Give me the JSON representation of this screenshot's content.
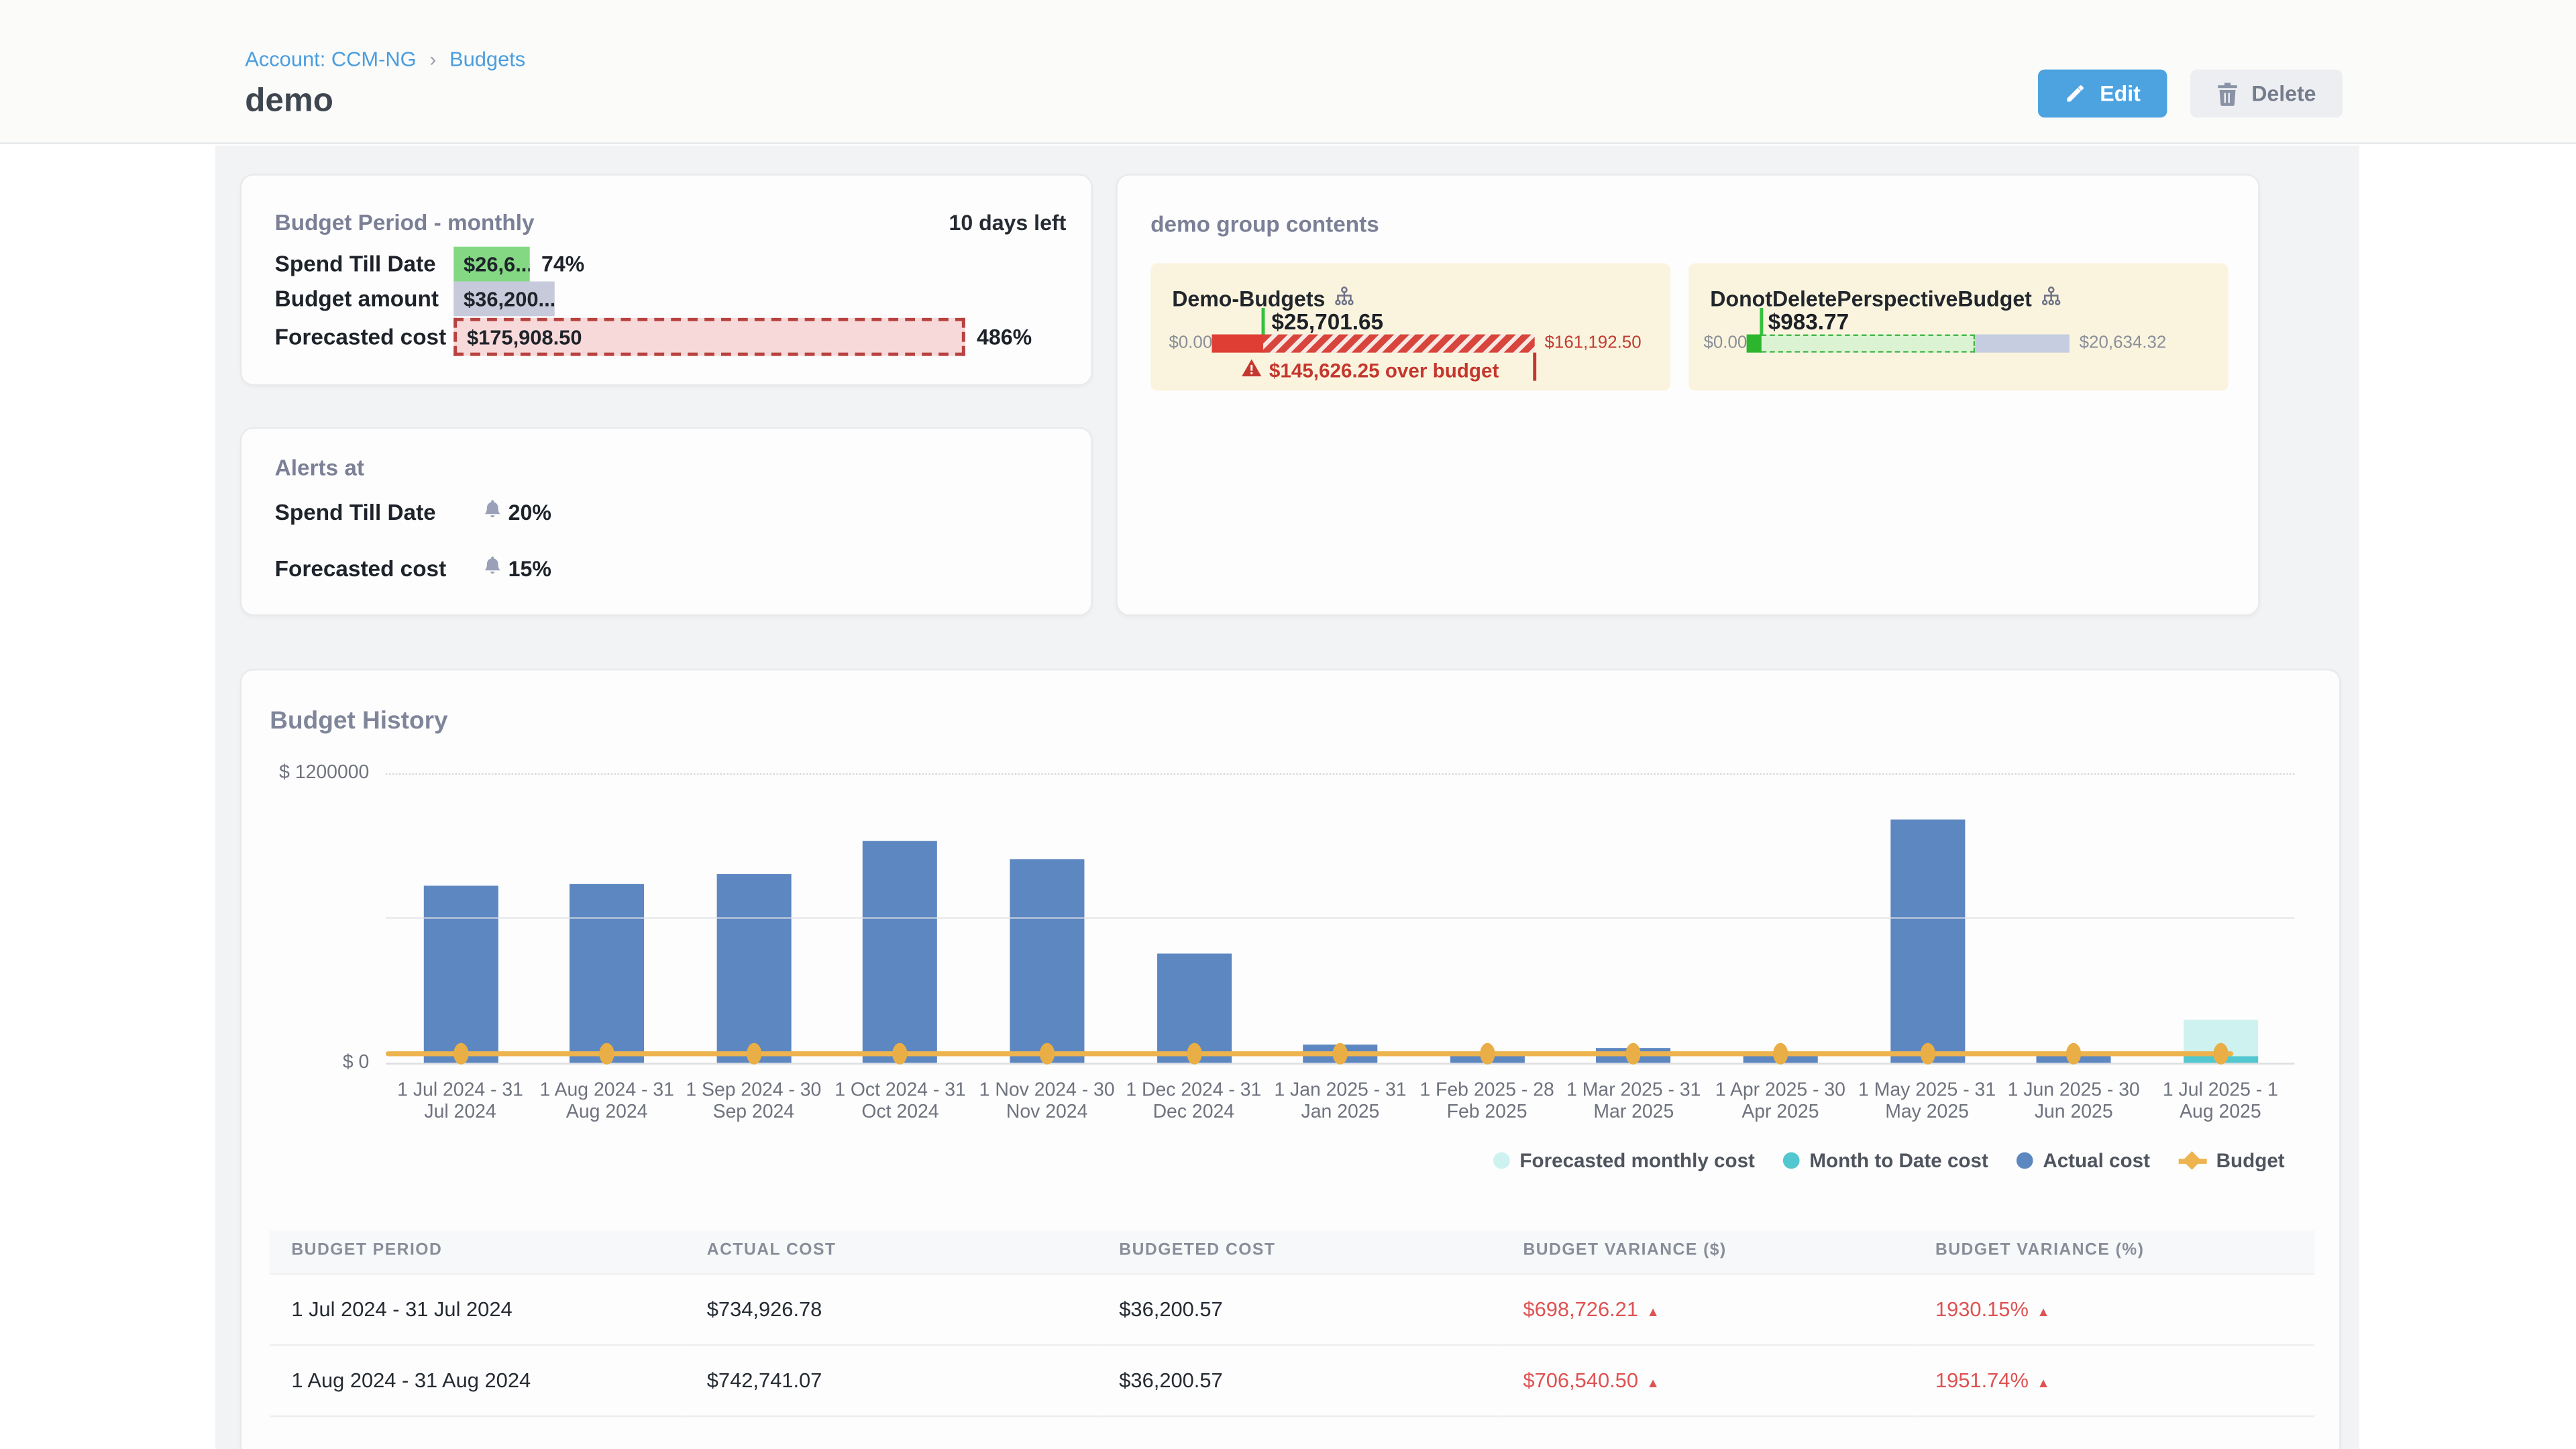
{
  "breadcrumb": {
    "account": "Account: CCM-NG",
    "separator": "›",
    "section": "Budgets"
  },
  "title": "demo",
  "actions": {
    "edit": "Edit",
    "delete": "Delete"
  },
  "summary_card": {
    "title": "Budget Period - monthly",
    "days_left": "10 days left",
    "rows": [
      {
        "label": "Spend Till Date",
        "value": "$26,6...",
        "percent": "74%"
      },
      {
        "label": "Budget amount",
        "value": "$36,200....",
        "percent": ""
      },
      {
        "label": "Forecasted cost",
        "value": "$175,908.50",
        "percent": "486%"
      }
    ],
    "colors": {
      "spend": "#84d884",
      "budget": "#c6cada",
      "forecast_fill": "#f7d9da",
      "forecast_border": "#b8423f"
    }
  },
  "alerts_card": {
    "title": "Alerts at",
    "rows": [
      {
        "label": "Spend Till Date",
        "value": "20%"
      },
      {
        "label": "Forecasted cost",
        "value": "15%"
      }
    ]
  },
  "group_card": {
    "title": "demo group contents",
    "tiles": [
      {
        "name": "Demo-Budgets",
        "spend_label": "$25,701.65",
        "min_label": "$0.00",
        "max_label": "$161,192.50",
        "over_text": "$145,626.25 over budget",
        "status": "over-budget",
        "bar": {
          "spend_pct": 15.9,
          "hatched_pct": 84.1
        }
      },
      {
        "name": "DonotDeletePerspectiveBudget",
        "spend_label": "$983.77",
        "min_label": "$0.00",
        "max_label": "$20,634.32",
        "status": "under-budget",
        "bar": {
          "spend_pct": 4.8,
          "forecast_pct": 66.0,
          "remaining_pct": 29.2
        }
      }
    ]
  },
  "history_card": {
    "title": "Budget History"
  },
  "chart_data": {
    "type": "bar",
    "title": "Budget History",
    "xlabel": "",
    "ylabel": "$",
    "ylim": [
      0,
      1200000
    ],
    "ytick_labels": {
      "top": "$ 1200000",
      "zero": "$ 0"
    },
    "grid": true,
    "legend_position": "bottom-right",
    "categories": [
      "1 Jul 2024 - 31 Jul 2024",
      "1 Aug 2024 - 31 Aug 2024",
      "1 Sep 2024 - 30 Sep 2024",
      "1 Oct 2024 - 31 Oct 2024",
      "1 Nov 2024 - 30 Nov 2024",
      "1 Dec 2024 - 31 Dec 2024",
      "1 Jan 2025 - 31 Jan 2025",
      "1 Feb 2025 - 28 Feb 2025",
      "1 Mar 2025 - 31 Mar 2025",
      "1 Apr 2025 - 30 Apr 2025",
      "1 May 2025 - 31 May 2025",
      "1 Jun 2025 - 30 Jun 2025",
      "1 Jul 2025 - 1 Aug 2025"
    ],
    "series": [
      {
        "name": "Actual cost",
        "color": "#5d87c1",
        "values": [
          734926.78,
          742741.07,
          781000,
          921000,
          846000,
          455000,
          75000,
          30000,
          62000,
          30000,
          1009000,
          25000,
          null
        ]
      },
      {
        "name": "Month to Date cost",
        "color": "#52c7cf",
        "values": [
          null,
          null,
          null,
          null,
          null,
          null,
          null,
          null,
          null,
          null,
          null,
          null,
          26600
        ]
      },
      {
        "name": "Forecasted monthly cost",
        "color": "#cdf2f0",
        "values": [
          null,
          null,
          null,
          null,
          null,
          null,
          null,
          null,
          null,
          null,
          null,
          null,
          175908.5
        ]
      },
      {
        "name": "Budget",
        "type": "line",
        "color": "#edb34e",
        "values": [
          36200.57,
          36200.57,
          36200.57,
          36200.57,
          36200.57,
          36200.57,
          36200.57,
          36200.57,
          36200.57,
          36200.57,
          36200.57,
          36200.57,
          36200.57
        ]
      }
    ],
    "legend": [
      {
        "label": "Forecasted monthly cost",
        "color": "#cdf2f0",
        "shape": "circle"
      },
      {
        "label": "Month to Date cost",
        "color": "#52c7cf",
        "shape": "circle"
      },
      {
        "label": "Actual cost",
        "color": "#5d87c1",
        "shape": "circle"
      },
      {
        "label": "Budget",
        "color": "#edb34e",
        "shape": "diamond-line"
      }
    ]
  },
  "table": {
    "headers": [
      "BUDGET PERIOD",
      "ACTUAL COST",
      "BUDGETED COST",
      "BUDGET VARIANCE ($)",
      "BUDGET VARIANCE (%)"
    ],
    "rows": [
      {
        "period": "1 Jul 2024 - 31 Jul 2024",
        "actual": "$734,926.78",
        "budgeted": "$36,200.57",
        "variance_usd": "$698,726.21",
        "variance_pct": "1930.15%",
        "direction": "up"
      },
      {
        "period": "1 Aug 2024 - 31 Aug 2024",
        "actual": "$742,741.07",
        "budgeted": "$36,200.57",
        "variance_usd": "$706,540.50",
        "variance_pct": "1951.74%",
        "direction": "up"
      }
    ]
  }
}
